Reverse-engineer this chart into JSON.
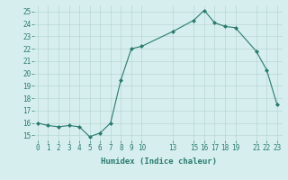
{
  "x": [
    0,
    1,
    2,
    3,
    4,
    5,
    6,
    7,
    8,
    9,
    10,
    13,
    15,
    16,
    17,
    18,
    19,
    21,
    22,
    23
  ],
  "y": [
    16.0,
    15.8,
    15.7,
    15.8,
    15.7,
    14.9,
    15.2,
    16.0,
    19.5,
    22.0,
    22.2,
    23.4,
    24.3,
    25.1,
    24.1,
    23.8,
    23.7,
    21.8,
    20.3,
    17.5
  ],
  "xticks": [
    0,
    1,
    2,
    3,
    4,
    5,
    6,
    7,
    8,
    9,
    10,
    13,
    15,
    16,
    17,
    18,
    19,
    21,
    22,
    23
  ],
  "yticks": [
    15,
    16,
    17,
    18,
    19,
    20,
    21,
    22,
    23,
    24,
    25
  ],
  "xlim": [
    -0.3,
    23.5
  ],
  "ylim": [
    14.6,
    25.5
  ],
  "xlabel": "Humidex (Indice chaleur)",
  "line_color": "#2a7b6e",
  "bg_color": "#d6eeee",
  "grid_color": "#b8d8d4",
  "tick_fontsize": 5.5,
  "xlabel_fontsize": 6.5
}
